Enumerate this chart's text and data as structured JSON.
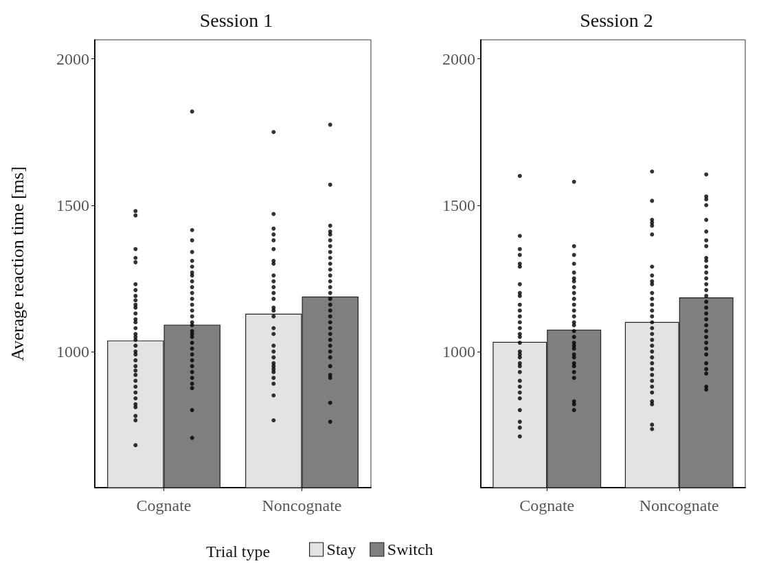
{
  "chart_data": [
    {
      "type": "bar",
      "title": "Session 1",
      "ylabel": "Average reaction time [ms]",
      "legend_title": "Trial type",
      "legend": "bottom",
      "categories": [
        "Cognate",
        "Noncognate"
      ],
      "ylim": [
        535,
        2065
      ],
      "yticks": [
        1000,
        1500,
        2000
      ],
      "grid": false,
      "marker": "circle",
      "series": [
        {
          "name": "Stay",
          "color": "#e3e3e3",
          "values": [
            1038,
            1129
          ]
        },
        {
          "name": "Switch",
          "color": "#7f7f7f",
          "values": [
            1092,
            1188
          ]
        },
        {
          "type": "scatter",
          "color": "#000000",
          "x": [
            "Cognate",
            "Cognate",
            "Cognate",
            "Cognate",
            "Cognate",
            "Cognate",
            "Cognate",
            "Cognate",
            "Cognate",
            "Cognate",
            "Cognate",
            "Cognate",
            "Cognate",
            "Cognate",
            "Cognate",
            "Cognate",
            "Cognate",
            "Cognate",
            "Cognate",
            "Cognate",
            "Cognate",
            "Cognate",
            "Cognate",
            "Cognate",
            "Cognate",
            "Cognate",
            "Cognate",
            "Cognate",
            "Cognate",
            "Cognate",
            "Cognate",
            "Cognate",
            "Cognate",
            "Cognate",
            "Noncognate",
            "Noncognate",
            "Noncognate",
            "Noncognate",
            "Noncognate",
            "Noncognate",
            "Noncognate",
            "Noncognate",
            "Noncognate",
            "Noncognate",
            "Noncognate",
            "Noncognate",
            "Noncognate",
            "Noncognate",
            "Noncognate",
            "Noncognate",
            "Noncognate",
            "Noncognate",
            "Noncognate",
            "Noncognate",
            "Noncognate",
            "Noncognate",
            "Noncognate",
            "Noncognate",
            "Noncognate",
            "Noncognate",
            "Noncognate",
            "Noncognate",
            "Noncognate"
          ],
          "values": [
            1480,
            1465,
            1350,
            1320,
            1305,
            1230,
            1210,
            1190,
            1175,
            1160,
            1150,
            1130,
            1110,
            1100,
            1080,
            1060,
            1050,
            1040,
            1020,
            1000,
            990,
            970,
            950,
            935,
            920,
            900,
            880,
            860,
            840,
            820,
            810,
            780,
            765,
            680,
            1750,
            1470,
            1420,
            1400,
            1380,
            1350,
            1310,
            1300,
            1260,
            1240,
            1220,
            1200,
            1180,
            1150,
            1140,
            1120,
            1080,
            1060,
            1020,
            1000,
            980,
            960,
            950,
            940,
            930,
            910,
            890,
            850,
            765
          ]
        },
        {
          "type": "scatter",
          "color": "#000000",
          "x": [
            "Cognate",
            "Cognate",
            "Cognate",
            "Cognate",
            "Cognate",
            "Cognate",
            "Cognate",
            "Cognate",
            "Cognate",
            "Cognate",
            "Cognate",
            "Cognate",
            "Cognate",
            "Cognate",
            "Cognate",
            "Cognate",
            "Cognate",
            "Cognate",
            "Cognate",
            "Cognate",
            "Cognate",
            "Cognate",
            "Cognate",
            "Cognate",
            "Cognate",
            "Cognate",
            "Cognate",
            "Cognate",
            "Cognate",
            "Cognate",
            "Cognate",
            "Noncognate",
            "Noncognate",
            "Noncognate",
            "Noncognate",
            "Noncognate",
            "Noncognate",
            "Noncognate",
            "Noncognate",
            "Noncognate",
            "Noncognate",
            "Noncognate",
            "Noncognate",
            "Noncognate",
            "Noncognate",
            "Noncognate",
            "Noncognate",
            "Noncognate",
            "Noncognate",
            "Noncognate",
            "Noncognate",
            "Noncognate",
            "Noncognate",
            "Noncognate",
            "Noncognate",
            "Noncognate",
            "Noncognate",
            "Noncognate",
            "Noncognate",
            "Noncognate",
            "Noncognate",
            "Noncognate"
          ],
          "values": [
            1820,
            1415,
            1380,
            1340,
            1310,
            1290,
            1270,
            1260,
            1240,
            1220,
            1200,
            1180,
            1160,
            1140,
            1120,
            1100,
            1090,
            1070,
            1060,
            1050,
            1030,
            1010,
            990,
            970,
            950,
            930,
            910,
            890,
            875,
            800,
            705,
            1775,
            1570,
            1430,
            1410,
            1400,
            1380,
            1360,
            1340,
            1320,
            1300,
            1280,
            1260,
            1240,
            1220,
            1200,
            1180,
            1160,
            1140,
            1120,
            1100,
            1080,
            1060,
            1040,
            1020,
            1000,
            980,
            950,
            920,
            910,
            825,
            760
          ]
        }
      ]
    },
    {
      "type": "bar",
      "title": "Session 2",
      "categories": [
        "Cognate",
        "Noncognate"
      ],
      "ylim": [
        535,
        2065
      ],
      "yticks": [
        1000,
        1500,
        2000
      ],
      "grid": false,
      "marker": "circle",
      "series": [
        {
          "color": "#e3e3e3",
          "values": [
            1033,
            1101
          ]
        },
        {
          "color": "#7f7f7f",
          "values": [
            1075,
            1185
          ]
        },
        {
          "type": "scatter",
          "color": "#000000",
          "x": [
            "Cognate",
            "Cognate",
            "Cognate",
            "Cognate",
            "Cognate",
            "Cognate",
            "Cognate",
            "Cognate",
            "Cognate",
            "Cognate",
            "Cognate",
            "Cognate",
            "Cognate",
            "Cognate",
            "Cognate",
            "Cognate",
            "Cognate",
            "Cognate",
            "Cognate",
            "Cognate",
            "Cognate",
            "Cognate",
            "Cognate",
            "Cognate",
            "Cognate",
            "Cognate",
            "Cognate",
            "Cognate",
            "Cognate",
            "Cognate",
            "Cognate",
            "Noncognate",
            "Noncognate",
            "Noncognate",
            "Noncognate",
            "Noncognate",
            "Noncognate",
            "Noncognate",
            "Noncognate",
            "Noncognate",
            "Noncognate",
            "Noncognate",
            "Noncognate",
            "Noncognate",
            "Noncognate",
            "Noncognate",
            "Noncognate",
            "Noncognate",
            "Noncognate",
            "Noncognate",
            "Noncognate",
            "Noncognate",
            "Noncognate",
            "Noncognate",
            "Noncognate",
            "Noncognate",
            "Noncognate",
            "Noncognate",
            "Noncognate",
            "Noncognate",
            "Noncognate",
            "Noncognate",
            "Noncognate"
          ],
          "values": [
            1600,
            1395,
            1350,
            1330,
            1300,
            1290,
            1230,
            1200,
            1190,
            1160,
            1140,
            1120,
            1100,
            1080,
            1060,
            1050,
            1030,
            1000,
            990,
            980,
            960,
            950,
            930,
            900,
            880,
            860,
            840,
            800,
            760,
            740,
            710,
            1615,
            1515,
            1450,
            1440,
            1430,
            1400,
            1290,
            1260,
            1240,
            1230,
            1200,
            1180,
            1160,
            1140,
            1120,
            1100,
            1080,
            1060,
            1040,
            1020,
            1000,
            980,
            960,
            940,
            920,
            900,
            880,
            860,
            830,
            820,
            750,
            735
          ]
        },
        {
          "type": "scatter",
          "color": "#000000",
          "x": [
            "Cognate",
            "Cognate",
            "Cognate",
            "Cognate",
            "Cognate",
            "Cognate",
            "Cognate",
            "Cognate",
            "Cognate",
            "Cognate",
            "Cognate",
            "Cognate",
            "Cognate",
            "Cognate",
            "Cognate",
            "Cognate",
            "Cognate",
            "Cognate",
            "Cognate",
            "Cognate",
            "Cognate",
            "Cognate",
            "Cognate",
            "Cognate",
            "Cognate",
            "Cognate",
            "Cognate",
            "Cognate",
            "Cognate",
            "Noncognate",
            "Noncognate",
            "Noncognate",
            "Noncognate",
            "Noncognate",
            "Noncognate",
            "Noncognate",
            "Noncognate",
            "Noncognate",
            "Noncognate",
            "Noncognate",
            "Noncognate",
            "Noncognate",
            "Noncognate",
            "Noncognate",
            "Noncognate",
            "Noncognate",
            "Noncognate",
            "Noncognate",
            "Noncognate",
            "Noncognate",
            "Noncognate",
            "Noncognate",
            "Noncognate",
            "Noncognate",
            "Noncognate",
            "Noncognate",
            "Noncognate",
            "Noncognate",
            "Noncognate",
            "Noncognate"
          ],
          "values": [
            1580,
            1360,
            1330,
            1300,
            1270,
            1250,
            1240,
            1220,
            1200,
            1180,
            1160,
            1140,
            1120,
            1100,
            1090,
            1070,
            1050,
            1030,
            1020,
            1010,
            990,
            980,
            960,
            950,
            930,
            910,
            830,
            820,
            800,
            1605,
            1530,
            1520,
            1500,
            1450,
            1410,
            1380,
            1360,
            1320,
            1310,
            1290,
            1270,
            1250,
            1230,
            1210,
            1190,
            1170,
            1150,
            1130,
            1110,
            1090,
            1070,
            1050,
            1030,
            1010,
            990,
            960,
            940,
            925,
            880,
            870
          ]
        }
      ]
    }
  ]
}
